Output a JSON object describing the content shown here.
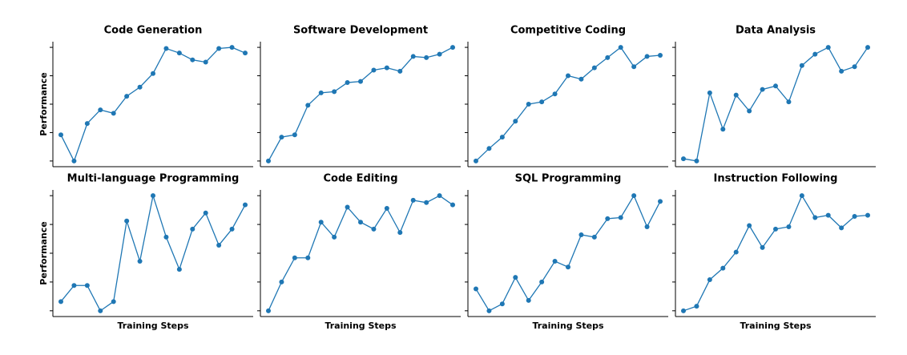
{
  "chart_data": [
    {
      "type": "line",
      "title": "Code Generation",
      "y_label": "Performance",
      "color": "#1f77b4",
      "ylim": [
        -5,
        105
      ],
      "yticks": [
        0,
        25,
        50,
        75,
        100
      ],
      "values": [
        23,
        0,
        33,
        45,
        42,
        57,
        65,
        77,
        99,
        95,
        89,
        87,
        99,
        100,
        95
      ]
    },
    {
      "type": "line",
      "title": "Software Development",
      "color": "#1f77b4",
      "ylim": [
        -5,
        105
      ],
      "yticks": [
        0,
        25,
        50,
        75,
        100
      ],
      "values": [
        0,
        21,
        23,
        49,
        60,
        61,
        69,
        70,
        80,
        82,
        79,
        92,
        91,
        94,
        100
      ]
    },
    {
      "type": "line",
      "title": "Competitive Coding",
      "color": "#1f77b4",
      "ylim": [
        -5,
        105
      ],
      "yticks": [
        0,
        25,
        50,
        75,
        100
      ],
      "values": [
        0,
        11,
        21,
        35,
        50,
        52,
        59,
        75,
        72,
        82,
        91,
        100,
        83,
        92,
        93
      ]
    },
    {
      "type": "line",
      "title": "Data Analysis",
      "color": "#1f77b4",
      "ylim": [
        -5,
        105
      ],
      "yticks": [
        0,
        25,
        50,
        75,
        100
      ],
      "values": [
        2,
        0,
        60,
        28,
        58,
        44,
        63,
        66,
        52,
        84,
        94,
        100,
        79,
        83,
        100
      ]
    },
    {
      "type": "line",
      "title": "Multi-language Programming",
      "y_label": "Performance",
      "x_label": "Training Steps",
      "color": "#1f77b4",
      "ylim": [
        -5,
        105
      ],
      "yticks": [
        0,
        25,
        50,
        75,
        100
      ],
      "values": [
        8,
        22,
        22,
        0,
        8,
        78,
        43,
        100,
        64,
        36,
        71,
        85,
        57,
        71,
        92
      ]
    },
    {
      "type": "line",
      "title": "Code Editing",
      "x_label": "Training Steps",
      "color": "#1f77b4",
      "ylim": [
        -5,
        105
      ],
      "yticks": [
        0,
        25,
        50,
        75,
        100
      ],
      "values": [
        0,
        25,
        46,
        46,
        77,
        64,
        90,
        77,
        71,
        89,
        68,
        96,
        94,
        100,
        92
      ]
    },
    {
      "type": "line",
      "title": "SQL Programming",
      "x_label": "Training Steps",
      "color": "#1f77b4",
      "ylim": [
        -5,
        105
      ],
      "yticks": [
        0,
        25,
        50,
        75,
        100
      ],
      "values": [
        19,
        0,
        6,
        29,
        9,
        25,
        43,
        38,
        66,
        64,
        80,
        81,
        100,
        73,
        95
      ]
    },
    {
      "type": "line",
      "title": "Instruction Following",
      "x_label": "Training Steps",
      "color": "#1f77b4",
      "ylim": [
        -5,
        105
      ],
      "yticks": [
        0,
        25,
        50,
        75,
        100
      ],
      "values": [
        0,
        4,
        27,
        37,
        51,
        74,
        55,
        71,
        73,
        100,
        81,
        83,
        72,
        82,
        83
      ]
    }
  ]
}
